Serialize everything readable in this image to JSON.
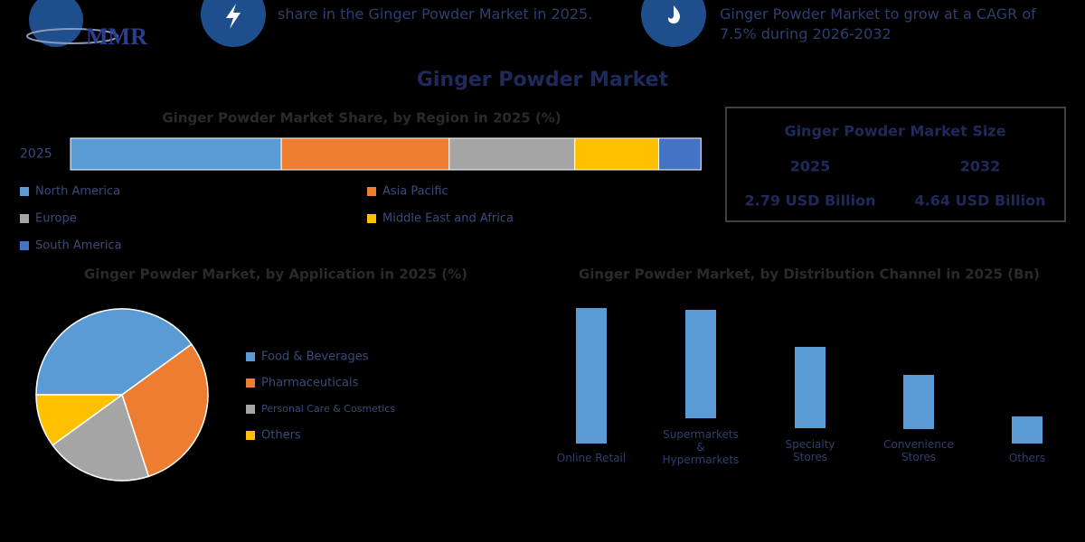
{
  "header": {
    "logo": "MMR",
    "stat_1": "share in the Ginger Powder Market in 2025.",
    "stat_2": "Ginger Powder Market to grow at a CAGR of\n7.5% during 2026-2032"
  },
  "title": "Ginger Powder Market",
  "chart_data": [
    {
      "type": "stacked-bar",
      "title": "Ginger Powder Market Share, by Region in 2025 (%)",
      "categories": [
        "2025"
      ],
      "xlim": [
        0,
        100
      ],
      "series": [
        {
          "name": "North America",
          "color": "#5b9bd5",
          "values": [
            33.4
          ]
        },
        {
          "name": "Asia Pacific",
          "color": "#ed7d31",
          "values": [
            26.6
          ]
        },
        {
          "name": "Europe",
          "color": "#a5a5a5",
          "values": [
            19.9
          ]
        },
        {
          "name": "Middle East and Africa",
          "color": "#ffc000",
          "values": [
            13.3
          ]
        },
        {
          "name": "South America",
          "color": "#4472c4",
          "values": [
            6.7
          ]
        }
      ]
    },
    {
      "type": "pie",
      "title": "Ginger Powder Market, by Application in 2025 (%)",
      "labels": [
        "Food & Beverages",
        "Pharmaceuticals",
        "Personal Care & Cosmetics",
        "Others"
      ],
      "values": [
        40,
        30,
        20,
        10
      ],
      "colors": [
        "#5b9bd5",
        "#ed7d31",
        "#a5a5a5",
        "#ffc000"
      ]
    },
    {
      "type": "bar",
      "title": "Ginger Powder Market, by Distribution Channel in 2025 (Bn)",
      "categories": [
        "Online Retail",
        "Supermarkets\n&\nHypermarkets",
        "Specialty\nStores",
        "Convenience\nStores",
        "Others"
      ],
      "values": [
        5,
        4,
        3,
        2,
        1
      ],
      "color": "#5b9bd5",
      "ylim": [
        0,
        5
      ]
    }
  ],
  "market_size": {
    "title": "Ginger Powder Market Size",
    "years": [
      "2025",
      "2032"
    ],
    "values": [
      "2.79 USD Billion",
      "4.64 USD Billion"
    ]
  }
}
